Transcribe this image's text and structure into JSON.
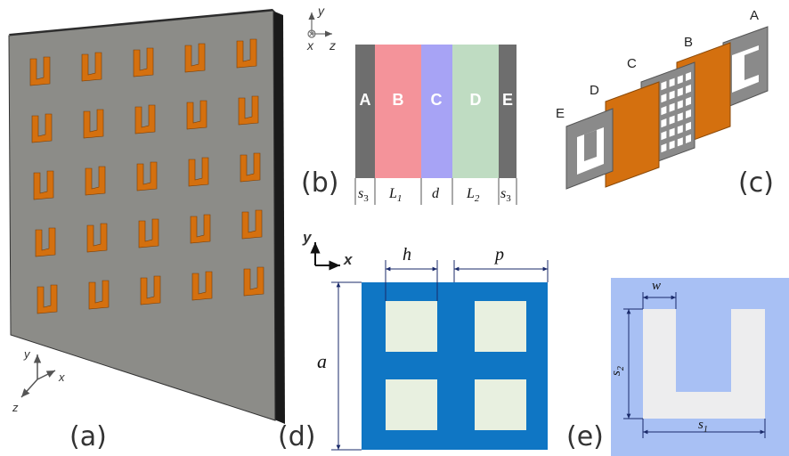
{
  "colors": {
    "background": "#ffffff",
    "slab": "#8c8c88",
    "slab_edge": "#1a1a1a",
    "u_copper": "#d4700f",
    "layer_gray": "#6e6e6e",
    "layer_pink": "#f4939a",
    "layer_violet": "#a7a3f5",
    "layer_green": "#bfdcc2",
    "cell_blue": "#0f76c4",
    "cell_light": "#e8f0e0",
    "srr_bg": "#a8c0f4",
    "srr_u": "#ededee",
    "dim_line": "#1a2a6a"
  },
  "panel_a": {
    "label": "(a)",
    "axes": {
      "y": "y",
      "x": "x",
      "z": "z"
    },
    "u_grid": {
      "rows": 5,
      "cols": 5
    }
  },
  "panel_b": {
    "label": "(b)",
    "axes": {
      "y": "y",
      "x": "x",
      "z": "z"
    },
    "layers": [
      {
        "letter": "A",
        "color": "#6e6e6e"
      },
      {
        "letter": "B",
        "color": "#f4939a"
      },
      {
        "letter": "C",
        "color": "#a7a3f5"
      },
      {
        "letter": "D",
        "color": "#bfdcc2"
      },
      {
        "letter": "E",
        "color": "#6e6e6e"
      }
    ],
    "dims": [
      {
        "base": "s",
        "sub": "3"
      },
      {
        "base": "L",
        "sub": "1"
      },
      {
        "base": "d",
        "sub": ""
      },
      {
        "base": "L",
        "sub": "2"
      },
      {
        "base": "s",
        "sub": "3"
      }
    ]
  },
  "panel_c": {
    "label": "(c)",
    "letters": {
      "a": "A",
      "b": "B",
      "c": "C",
      "d": "D",
      "e": "E"
    }
  },
  "panel_d": {
    "label": "(d)",
    "axes": {
      "y": "y",
      "x": "x"
    },
    "dims": {
      "h": "h",
      "p": "p",
      "a": "a"
    }
  },
  "panel_e": {
    "label": "(e)",
    "dims": {
      "w": "w",
      "s2_base": "s",
      "s2_sub": "2",
      "s1_base": "s",
      "s1_sub": "1"
    }
  }
}
